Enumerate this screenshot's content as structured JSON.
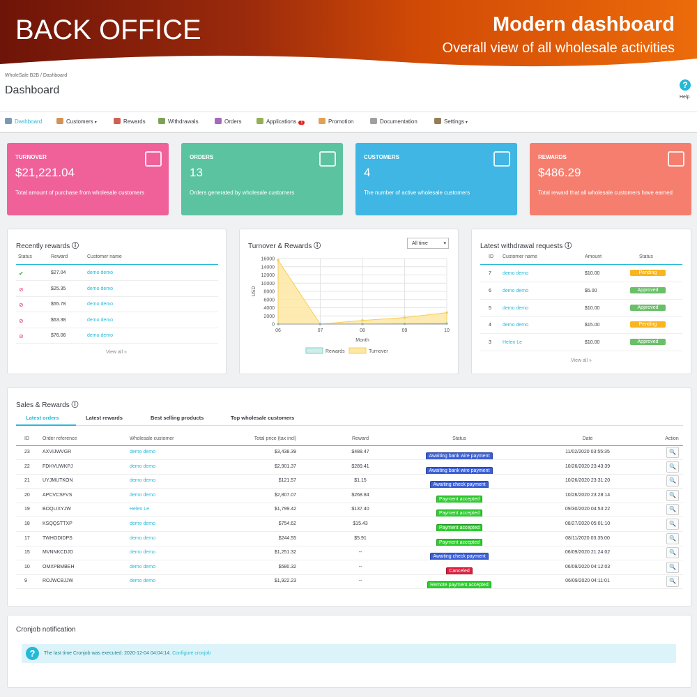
{
  "banner": {
    "title": "BACK OFFICE",
    "headline": "Modern dashboard",
    "subtitle": "Overall view of all wholesale activities"
  },
  "breadcrumb": [
    "WholeSale B2B",
    "Dashboard"
  ],
  "page_title": "Dashboard",
  "help": "Help",
  "nav": [
    {
      "label": "Dashboard"
    },
    {
      "label": "Customers"
    },
    {
      "label": "Rewards"
    },
    {
      "label": "Withdrawals"
    },
    {
      "label": "Orders"
    },
    {
      "label": "Applications",
      "badge": "1"
    },
    {
      "label": "Promotion"
    },
    {
      "label": "Documentation"
    },
    {
      "label": "Settings"
    }
  ],
  "kpis": [
    {
      "title": "TURNOVER",
      "value": "$21,221.04",
      "description": "Total amount of purchase from wholesale customers",
      "color": "#f0619a"
    },
    {
      "title": "ORDERS",
      "value": "13",
      "description": "Orders generated by wholesale customers",
      "color": "#5cc3a0"
    },
    {
      "title": "CUSTOMERS",
      "value": "4",
      "description": "The number of active wholesale customers",
      "color": "#3fb6e3"
    },
    {
      "title": "REWARDS",
      "value": "$486.29",
      "description": "Total reward that all wholesale customers have earned",
      "color": "#f57e6f"
    }
  ],
  "recent_rewards": {
    "title": "Recently rewards",
    "headers": [
      "Status",
      "Reward",
      "Customer name"
    ],
    "rows": [
      {
        "status": "check",
        "reward": "$27.04",
        "customer": "demo demo"
      },
      {
        "status": "circle",
        "reward": "$25.35",
        "customer": "demo demo"
      },
      {
        "status": "circle",
        "reward": "$55.78",
        "customer": "demo demo"
      },
      {
        "status": "circle",
        "reward": "$63.38",
        "customer": "demo demo"
      },
      {
        "status": "circle",
        "reward": "$76.06",
        "customer": "demo demo"
      }
    ],
    "view_all": "View all »"
  },
  "turnover_chart": {
    "type": "area",
    "title": "Turnover & Rewards",
    "filter": "All time",
    "y_label": "USD",
    "x_label": "Month",
    "x": [
      "06",
      "07",
      "08",
      "09",
      "10"
    ],
    "series": [
      {
        "name": "Rewards",
        "color": "#cdeee9",
        "line": "#7fd1c4",
        "values": [
          0,
          0,
          30,
          80,
          150
        ]
      },
      {
        "name": "Turnover",
        "color": "#fde7a3",
        "line": "#f6cf55",
        "values": [
          15600,
          0,
          900,
          1600,
          2800
        ]
      }
    ],
    "ylim": [
      0,
      16000
    ],
    "yticks": [
      0,
      2000,
      4000,
      6000,
      8000,
      10000,
      12000,
      14000,
      16000
    ],
    "grid": true
  },
  "withdrawals": {
    "title": "Latest withdrawal requests",
    "headers": [
      "ID",
      "Customer name",
      "Amount",
      "Status"
    ],
    "rows": [
      {
        "id": "7",
        "customer": "demo demo",
        "amount": "$10.00",
        "status": "Pending",
        "color": "#f9b51f"
      },
      {
        "id": "6",
        "customer": "demo demo",
        "amount": "$5.00",
        "status": "Approved",
        "color": "#6abf69"
      },
      {
        "id": "5",
        "customer": "demo demo",
        "amount": "$10.00",
        "status": "Approved",
        "color": "#6abf69"
      },
      {
        "id": "4",
        "customer": "demo demo",
        "amount": "$15.00",
        "status": "Pending",
        "color": "#f9b51f"
      },
      {
        "id": "3",
        "customer": "Helen Le",
        "amount": "$10.00",
        "status": "Approved",
        "color": "#6abf69"
      }
    ],
    "view_all": "View all »"
  },
  "sales": {
    "title": "Sales & Rewards",
    "tabs": [
      "Latest orders",
      "Latest rewards",
      "Best selling products",
      "Top wholesale customers"
    ],
    "headers": [
      "ID",
      "Order reference",
      "Wholesale customer",
      "Total price (tax incl)",
      "Reward",
      "Status",
      "Date",
      "Action"
    ],
    "rows": [
      [
        "23",
        "AXVIJWVGR",
        "demo demo",
        "$3,438.39",
        "$488.47",
        "Awaiting bank wire payment",
        "11/02/2020 03:55:35"
      ],
      [
        "22",
        "FDHVUWKPJ",
        "demo demo",
        "$2,901.37",
        "$289.41",
        "Awaiting bank wire payment",
        "10/26/2020 23:43:39"
      ],
      [
        "21",
        "UYJMUTKON",
        "demo demo",
        "$121.57",
        "$1.15",
        "Awaiting check payment",
        "10/26/2020 23:31:20"
      ],
      [
        "20",
        "APCVCSFVS",
        "demo demo",
        "$2,807.07",
        "$268.84",
        "Payment accepted",
        "10/26/2020 23:28:14"
      ],
      [
        "19",
        "BOQLIXYJW",
        "Helen Le",
        "$1,799.42",
        "$137.40",
        "Payment accepted",
        "09/30/2020 04:53:22"
      ],
      [
        "18",
        "KSQQSTTXP",
        "demo demo",
        "$754.62",
        "$15.43",
        "Payment accepted",
        "08/27/2020 05:01:10"
      ],
      [
        "17",
        "TWHGDIDPS",
        "demo demo",
        "$244.55",
        "$5.91",
        "Payment accepted",
        "08/11/2020 03:35:00"
      ],
      [
        "15",
        "MVNNKCDJD",
        "demo demo",
        "$1,251.32",
        "--",
        "Awaiting check payment",
        "06/09/2020 21:24:02"
      ],
      [
        "10",
        "OMXPBMBEH",
        "demo demo",
        "$580.32",
        "--",
        "Canceled",
        "06/09/2020 04:12:03"
      ],
      [
        "9",
        "ROJWCBJJW",
        "demo demo",
        "$1,922.23",
        "--",
        "Remote payment accepted",
        "06/09/2020 04:11:01"
      ]
    ],
    "status_colors": [
      "#3b5fd6",
      "#3b5fd6",
      "#3b5fd6",
      "#2fcc2f",
      "#2fcc2f",
      "#2fcc2f",
      "#2fcc2f",
      "#3b5fd6",
      "#dc1f3c",
      "#2fcc2f"
    ]
  },
  "cronjob": {
    "title": "Cronjob notification",
    "message": "The last time Cronjob was executed: 2020-12-04 04:04:14.",
    "link": "Configure cronjob"
  }
}
